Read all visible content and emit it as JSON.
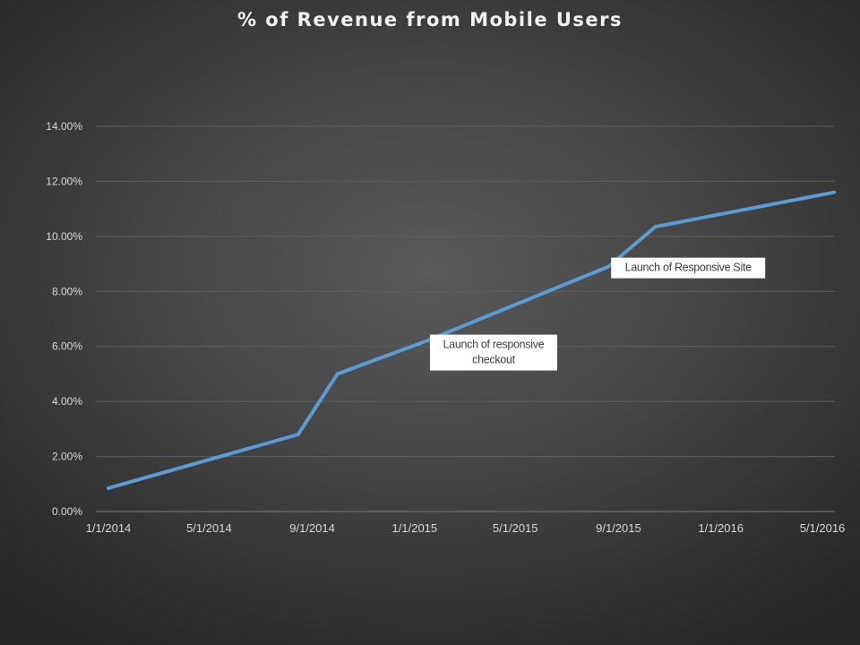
{
  "chart_data": {
    "type": "line",
    "title": "% of Revenue from Mobile Users",
    "xlabel": "",
    "ylabel": "",
    "x_ticks": [
      "1/1/2014",
      "5/1/2014",
      "9/1/2014",
      "1/1/2015",
      "5/1/2015",
      "9/1/2015",
      "1/1/2016",
      "5/1/2016"
    ],
    "y_ticks": [
      "0.00%",
      "2.00%",
      "4.00%",
      "6.00%",
      "8.00%",
      "10.00%",
      "12.00%",
      "14.00%"
    ],
    "xlim": [
      "1/1/2014",
      "5/1/2016"
    ],
    "ylim": [
      0,
      14
    ],
    "y_unit": "percent",
    "grid": true,
    "legend": false,
    "series": [
      {
        "color": "#5b9bd5",
        "points": [
          {
            "x": "1/1/2014",
            "y": 0.85
          },
          {
            "x": "8/15/2014",
            "y": 2.8
          },
          {
            "x": "10/1/2014",
            "y": 5.0
          },
          {
            "x": "1/15/2015",
            "y": 6.2
          },
          {
            "x": "8/20/2015",
            "y": 8.9
          },
          {
            "x": "10/15/2015",
            "y": 10.35
          },
          {
            "x": "5/15/2016",
            "y": 11.6
          }
        ]
      }
    ],
    "annotations": [
      {
        "lines": [
          "Launch of responsive",
          "checkout"
        ],
        "x": "1/15/2015",
        "y": 6.2
      },
      {
        "lines": [
          "Launch of Responsive Site"
        ],
        "x": "8/20/2015",
        "y": 8.9
      }
    ]
  }
}
